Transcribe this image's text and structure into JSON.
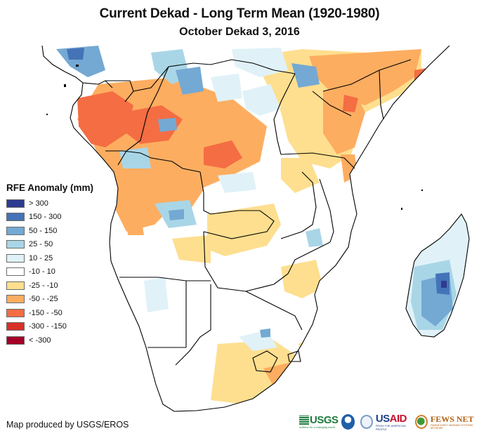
{
  "header": {
    "title": "Current Dekad - Long Term Mean (1920-1980)",
    "subtitle": "October Dekad 3, 2016"
  },
  "legend": {
    "title": "RFE Anomaly (mm)",
    "items": [
      {
        "label": "> 300",
        "color": "#2e3a8f"
      },
      {
        "label": "150 - 300",
        "color": "#4573b8"
      },
      {
        "label": "50 - 150",
        "color": "#74a9d3"
      },
      {
        "label": "25 - 50",
        "color": "#a9d6e7"
      },
      {
        "label": "10 - 25",
        "color": "#e0f2f8"
      },
      {
        "label": "-10 - 10",
        "color": "#ffffff"
      },
      {
        "label": "-25 - -10",
        "color": "#fedf8f"
      },
      {
        "label": "-50 - -25",
        "color": "#fdad60"
      },
      {
        "label": "-150 - -50",
        "color": "#f46d43"
      },
      {
        "label": "-300 - -150",
        "color": "#d83027"
      },
      {
        "label": "< -300",
        "color": "#a50027"
      }
    ]
  },
  "footer": {
    "credit": "Map produced by USGS/EROS",
    "logos": {
      "usgs": "USGS",
      "usgs_tagline": "science for a changing world",
      "usaid_us": "US",
      "usaid_aid": "AID",
      "usaid_tagline": "FROM THE AMERICAN PEOPLE",
      "fews": "FEWS NET",
      "fews_tagline": "FAMINE EARLY WARNING SYSTEMS NETWORK"
    }
  }
}
